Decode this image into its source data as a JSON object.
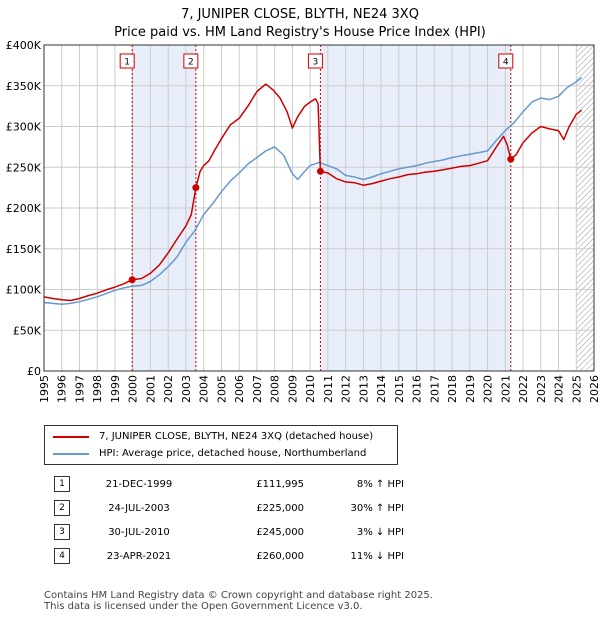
{
  "title_line1": "7, JUNIPER CLOSE, BLYTH, NE24 3XQ",
  "title_line2": "Price paid vs. HM Land Registry's House Price Index (HPI)",
  "colors": {
    "price": "#cc0000",
    "hpi": "#6699cc",
    "shade": "#e8eef9",
    "marker_line": "#cc0000",
    "grid": "#cccccc"
  },
  "legend": {
    "price_label": "7, JUNIPER CLOSE, BLYTH, NE24 3XQ (detached house)",
    "hpi_label": "HPI: Average price, detached house, Northumberland"
  },
  "sales": [
    {
      "num": "1",
      "date": "21-DEC-1999",
      "price": "£111,995",
      "hpi": "8% ↑ HPI"
    },
    {
      "num": "2",
      "date": "24-JUL-2003",
      "price": "£225,000",
      "hpi": "30% ↑ HPI"
    },
    {
      "num": "3",
      "date": "30-JUL-2010",
      "price": "£245,000",
      "hpi": "3% ↓ HPI"
    },
    {
      "num": "4",
      "date": "23-APR-2021",
      "price": "£260,000",
      "hpi": "11% ↓ HPI"
    }
  ],
  "footer_line1": "Contains HM Land Registry data © Crown copyright and database right 2025.",
  "footer_line2": "This data is licensed under the Open Government Licence v3.0.",
  "chart_data": {
    "type": "line",
    "title": "7, JUNIPER CLOSE, BLYTH, NE24 3XQ — Price paid vs. HM Land Registry's House Price Index (HPI)",
    "xlim": [
      1995,
      2026
    ],
    "ylim": [
      0,
      400000
    ],
    "x_ticks": [
      1995,
      1996,
      1997,
      1998,
      1999,
      2000,
      2001,
      2002,
      2003,
      2004,
      2005,
      2006,
      2007,
      2008,
      2009,
      2010,
      2011,
      2012,
      2013,
      2014,
      2015,
      2016,
      2017,
      2018,
      2019,
      2020,
      2021,
      2022,
      2023,
      2024,
      2025,
      2026
    ],
    "y_ticks": [
      {
        "value": 0,
        "label": "£0"
      },
      {
        "value": 50000,
        "label": "£50K"
      },
      {
        "value": 100000,
        "label": "£100K"
      },
      {
        "value": 150000,
        "label": "£150K"
      },
      {
        "value": 200000,
        "label": "£200K"
      },
      {
        "value": 250000,
        "label": "£250K"
      },
      {
        "value": 300000,
        "label": "£300K"
      },
      {
        "value": 350000,
        "label": "£350K"
      },
      {
        "value": 400000,
        "label": "£400K"
      }
    ],
    "grid": true,
    "future_hatch_from": 2025.0,
    "shaded_periods": [
      [
        1999.97,
        2003.56
      ],
      [
        2010.58,
        2021.31
      ]
    ],
    "series": [
      {
        "name": "7, JUNIPER CLOSE, BLYTH, NE24 3XQ (detached house)",
        "color": "#cc0000",
        "points": [
          [
            1995.0,
            91000
          ],
          [
            1995.5,
            89000
          ],
          [
            1996.0,
            87500
          ],
          [
            1996.5,
            86500
          ],
          [
            1997.0,
            89000
          ],
          [
            1997.5,
            92500
          ],
          [
            1998.0,
            95500
          ],
          [
            1998.5,
            99500
          ],
          [
            1999.0,
            103000
          ],
          [
            1999.5,
            107000
          ],
          [
            1999.97,
            111995
          ],
          [
            2000.5,
            113500
          ],
          [
            2001.0,
            120000
          ],
          [
            2001.5,
            130000
          ],
          [
            2002.0,
            145000
          ],
          [
            2002.5,
            162000
          ],
          [
            2003.0,
            178000
          ],
          [
            2003.3,
            192000
          ],
          [
            2003.56,
            225000
          ],
          [
            2003.8,
            245000
          ],
          [
            2004.0,
            252000
          ],
          [
            2004.3,
            258000
          ],
          [
            2004.6,
            270000
          ],
          [
            2005.0,
            285000
          ],
          [
            2005.5,
            302000
          ],
          [
            2006.0,
            310000
          ],
          [
            2006.5,
            325000
          ],
          [
            2007.0,
            343000
          ],
          [
            2007.5,
            352000
          ],
          [
            2007.9,
            345000
          ],
          [
            2008.3,
            335000
          ],
          [
            2008.7,
            318000
          ],
          [
            2009.0,
            298000
          ],
          [
            2009.3,
            312000
          ],
          [
            2009.7,
            325000
          ],
          [
            2010.0,
            330000
          ],
          [
            2010.3,
            334000
          ],
          [
            2010.45,
            328000
          ],
          [
            2010.58,
            245000
          ],
          [
            2011.0,
            243000
          ],
          [
            2011.5,
            236000
          ],
          [
            2012.0,
            232000
          ],
          [
            2012.5,
            231000
          ],
          [
            2013.0,
            228000
          ],
          [
            2013.5,
            230000
          ],
          [
            2014.0,
            233000
          ],
          [
            2014.5,
            236000
          ],
          [
            2015.0,
            238000
          ],
          [
            2015.5,
            241000
          ],
          [
            2016.0,
            242000
          ],
          [
            2016.5,
            244000
          ],
          [
            2017.0,
            245000
          ],
          [
            2017.5,
            247000
          ],
          [
            2018.0,
            249000
          ],
          [
            2018.5,
            251000
          ],
          [
            2019.0,
            252000
          ],
          [
            2019.5,
            255000
          ],
          [
            2020.0,
            258000
          ],
          [
            2020.5,
            275000
          ],
          [
            2020.9,
            288000
          ],
          [
            2021.1,
            278000
          ],
          [
            2021.31,
            260000
          ],
          [
            2021.6,
            265000
          ],
          [
            2022.0,
            280000
          ],
          [
            2022.5,
            292000
          ],
          [
            2023.0,
            300000
          ],
          [
            2023.5,
            297000
          ],
          [
            2024.0,
            295000
          ],
          [
            2024.3,
            284000
          ],
          [
            2024.6,
            300000
          ],
          [
            2025.0,
            315000
          ],
          [
            2025.3,
            320000
          ]
        ]
      },
      {
        "name": "HPI: Average price, detached house, Northumberland",
        "color": "#6699cc",
        "points": [
          [
            1995.0,
            84000
          ],
          [
            1995.5,
            83000
          ],
          [
            1996.0,
            82000
          ],
          [
            1996.5,
            83000
          ],
          [
            1997.0,
            85000
          ],
          [
            1997.5,
            88000
          ],
          [
            1998.0,
            91000
          ],
          [
            1998.5,
            95000
          ],
          [
            1999.0,
            99000
          ],
          [
            1999.5,
            102000
          ],
          [
            2000.0,
            104000
          ],
          [
            2000.5,
            105000
          ],
          [
            2001.0,
            110000
          ],
          [
            2001.5,
            118000
          ],
          [
            2002.0,
            128000
          ],
          [
            2002.5,
            140000
          ],
          [
            2003.0,
            158000
          ],
          [
            2003.5,
            172000
          ],
          [
            2004.0,
            192000
          ],
          [
            2004.5,
            205000
          ],
          [
            2005.0,
            220000
          ],
          [
            2005.5,
            233000
          ],
          [
            2006.0,
            243000
          ],
          [
            2006.5,
            254000
          ],
          [
            2007.0,
            262000
          ],
          [
            2007.5,
            270000
          ],
          [
            2008.0,
            275000
          ],
          [
            2008.5,
            265000
          ],
          [
            2009.0,
            242000
          ],
          [
            2009.3,
            235000
          ],
          [
            2009.7,
            245000
          ],
          [
            2010.0,
            252000
          ],
          [
            2010.5,
            256000
          ],
          [
            2011.0,
            252000
          ],
          [
            2011.5,
            248000
          ],
          [
            2012.0,
            240000
          ],
          [
            2012.5,
            238000
          ],
          [
            2013.0,
            235000
          ],
          [
            2013.5,
            238000
          ],
          [
            2014.0,
            242000
          ],
          [
            2014.5,
            245000
          ],
          [
            2015.0,
            248000
          ],
          [
            2015.5,
            250000
          ],
          [
            2016.0,
            252000
          ],
          [
            2016.5,
            255000
          ],
          [
            2017.0,
            257000
          ],
          [
            2017.5,
            259000
          ],
          [
            2018.0,
            262000
          ],
          [
            2018.5,
            264000
          ],
          [
            2019.0,
            266000
          ],
          [
            2019.5,
            268000
          ],
          [
            2020.0,
            270000
          ],
          [
            2020.5,
            283000
          ],
          [
            2021.0,
            295000
          ],
          [
            2021.5,
            305000
          ],
          [
            2022.0,
            318000
          ],
          [
            2022.5,
            330000
          ],
          [
            2023.0,
            335000
          ],
          [
            2023.5,
            333000
          ],
          [
            2024.0,
            337000
          ],
          [
            2024.5,
            348000
          ],
          [
            2025.0,
            355000
          ],
          [
            2025.3,
            360000
          ]
        ]
      }
    ],
    "sale_markers": [
      {
        "label": "1",
        "x": 1999.97,
        "y": 111995
      },
      {
        "label": "2",
        "x": 2003.56,
        "y": 225000
      },
      {
        "label": "3",
        "x": 2010.58,
        "y": 245000
      },
      {
        "label": "4",
        "x": 2021.31,
        "y": 260000
      }
    ]
  }
}
